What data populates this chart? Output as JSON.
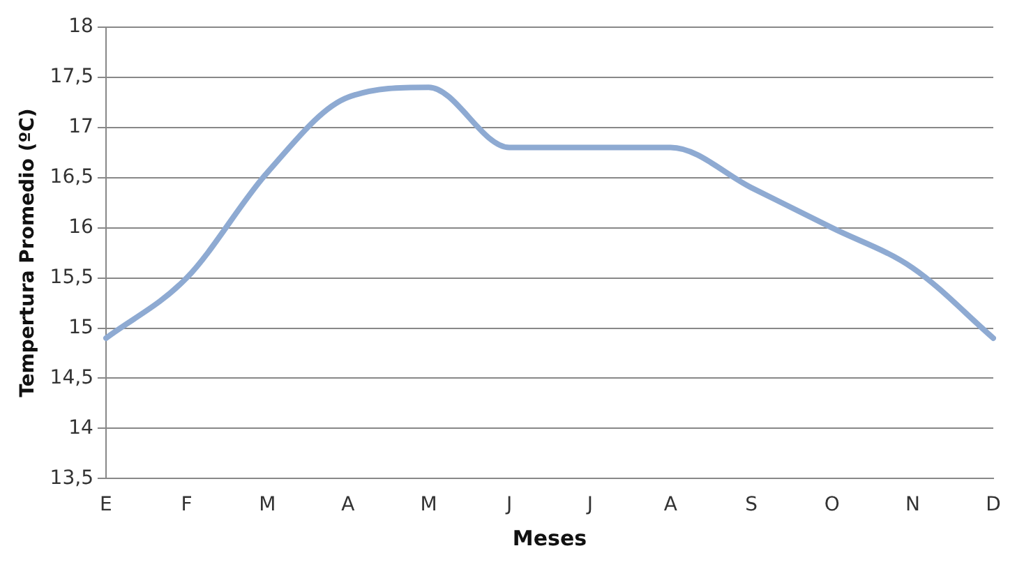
{
  "chart_data": {
    "type": "line",
    "xlabel": "Meses",
    "ylabel": "Tempertura Promedio (ºC)",
    "categories": [
      "E",
      "F",
      "M",
      "A",
      "M",
      "J",
      "J",
      "A",
      "S",
      "O",
      "N",
      "D"
    ],
    "series": [
      {
        "color": "#8eaad2",
        "values": [
          14.9,
          15.5,
          16.55,
          17.3,
          17.4,
          16.8,
          16.8,
          16.8,
          16.4,
          16.0,
          15.6,
          14.9
        ]
      }
    ],
    "ylim": [
      13.5,
      18
    ],
    "yticks": [
      {
        "value": 13.5,
        "label": "13,5"
      },
      14,
      {
        "value": 14.5,
        "label": "14,5"
      },
      15,
      {
        "value": 15.5,
        "label": "15,5"
      },
      16,
      {
        "value": 16.5,
        "label": "16,5"
      },
      17,
      {
        "value": 17.5,
        "label": "17,5"
      },
      18
    ],
    "grid": "y",
    "legend": false,
    "marker": "none",
    "line_style": "solid"
  }
}
